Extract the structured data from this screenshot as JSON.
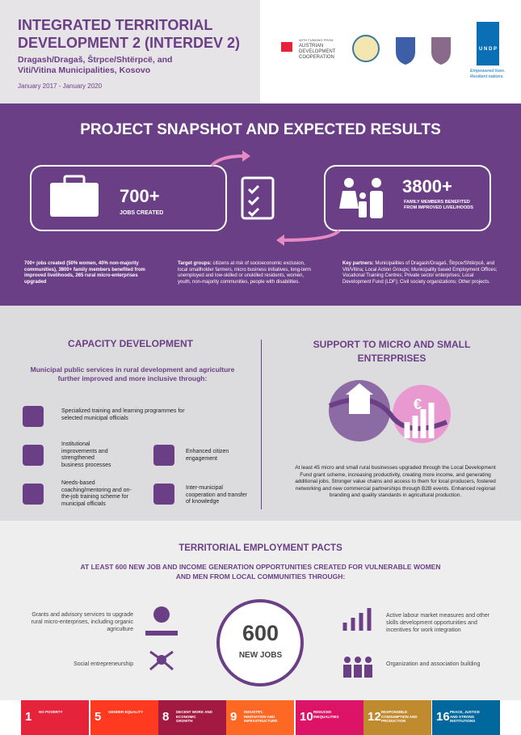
{
  "header": {
    "title": "INTEGRATED TERRITORIAL DEVELOPMENT 2 (INTERDEV 2)",
    "subtitle": "Dragash/Dragaš, Štrpce/Shtërpcë, and Viti/Vitina Municipalities, Kosovo",
    "dates": "January 2017 - January 2020",
    "funding_label": "WITH FUNDING FROM",
    "funder": "AUSTRIAN DEVELOPMENT COOPERATION",
    "undp": "U N D P",
    "undp_tagline": "Empowered lives. Resilient nations."
  },
  "snapshot": {
    "title": "PROJECT SNAPSHOT AND EXPECTED RESULTS",
    "stat1": {
      "number": "700+",
      "label": "JOBS CREATED"
    },
    "stat2": {
      "number": "3800+",
      "label": "FAMILY MEMBERS BENEFITED FROM IMPROVED LIVELIHOODS"
    },
    "jobs_text": "700+ jobs created (50% women, 40% non-majority communities), 3800+ family members benefited from improved livelihoods, 265 rural micro-enterprises upgraded",
    "target_label": "Target groups:",
    "target_text": " citizens at risk of socioeconomic exclusion, local smallholder farmers, micro business initiatives, long-term unemployed and low-skilled or unskilled residents, women, youth, non-majority communities, people with disabilities.",
    "partners_label": "Key partners:",
    "partners_text": " Municipalities of Dragash/Dragaš, Štrpce/Shtërpcë, and Viti/Vitina; Local Action Groups; Municipality based Employment Offices; Vocational Training Centres; Private sector enterprises; Local Development Fund (LDF); Civil society organizations; Other projects."
  },
  "capacity": {
    "title": "CAPACITY DEVELOPMENT",
    "intro": "Municipal public services in rural development and agriculture further improved and more inclusive through:",
    "items": [
      "Specialized training and learning programmes for selected municipal officials",
      "Institutional improvements and strengthened business processes",
      "Enhanced citizen engagement",
      "Needs-based coaching/mentoring and on-the-job training scheme for municipal officials",
      "Inter-municipal cooperation and transfer of knowledge"
    ]
  },
  "support": {
    "title": "SUPPORT TO MICRO AND SMALL ENTERPRISES",
    "currency": "€",
    "text": "At least 45 micro and small rural businesses upgraded through the Local Development Fund grant scheme, increasing productivity, creating more income, and generating additional jobs. Stronger value chains and access to them for local producers, fostered networking and new commercial partnerships through B2B events. Enhanced regional branding and quality standards in agricultural production."
  },
  "pacts": {
    "title": "TERRITORIAL EMPLOYMENT PACTS",
    "subtitle": "AT LEAST 600 NEW JOB AND INCOME GENERATION OPPORTUNITIES CREATED FOR VULNERABLE WOMEN AND MEN FROM LOCAL COMMUNITIES THROUGH:",
    "number": "600",
    "number_label": "NEW JOBS",
    "left": [
      "Grants and advisory services to upgrade rural micro-enterprises, including organic agriculture",
      "Social entrepreneurship"
    ],
    "right": [
      "Active labour market measures and other skills development opportunities and incentives for work integration",
      "Organization and association building"
    ]
  },
  "sdgs": [
    {
      "number": "1",
      "label": "NO POVERTY",
      "color": "#e5243b"
    },
    {
      "number": "5",
      "label": "GENDER EQUALITY",
      "color": "#ff3a21"
    },
    {
      "number": "8",
      "label": "DECENT WORK AND ECONOMIC GROWTH",
      "color": "#a21942"
    },
    {
      "number": "9",
      "label": "INDUSTRY, INNOVATION AND INFRASTRUCTURE",
      "color": "#fd6925"
    },
    {
      "number": "10",
      "label": "REDUCED INEQUALITIES",
      "color": "#dd1367"
    },
    {
      "number": "12",
      "label": "RESPONSIBLE CONSUMPTION AND PRODUCTION",
      "color": "#bf8b2e"
    },
    {
      "number": "16",
      "label": "PEACE, JUSTICE AND STRONG INSTITUTIONS",
      "color": "#00689d"
    }
  ]
}
